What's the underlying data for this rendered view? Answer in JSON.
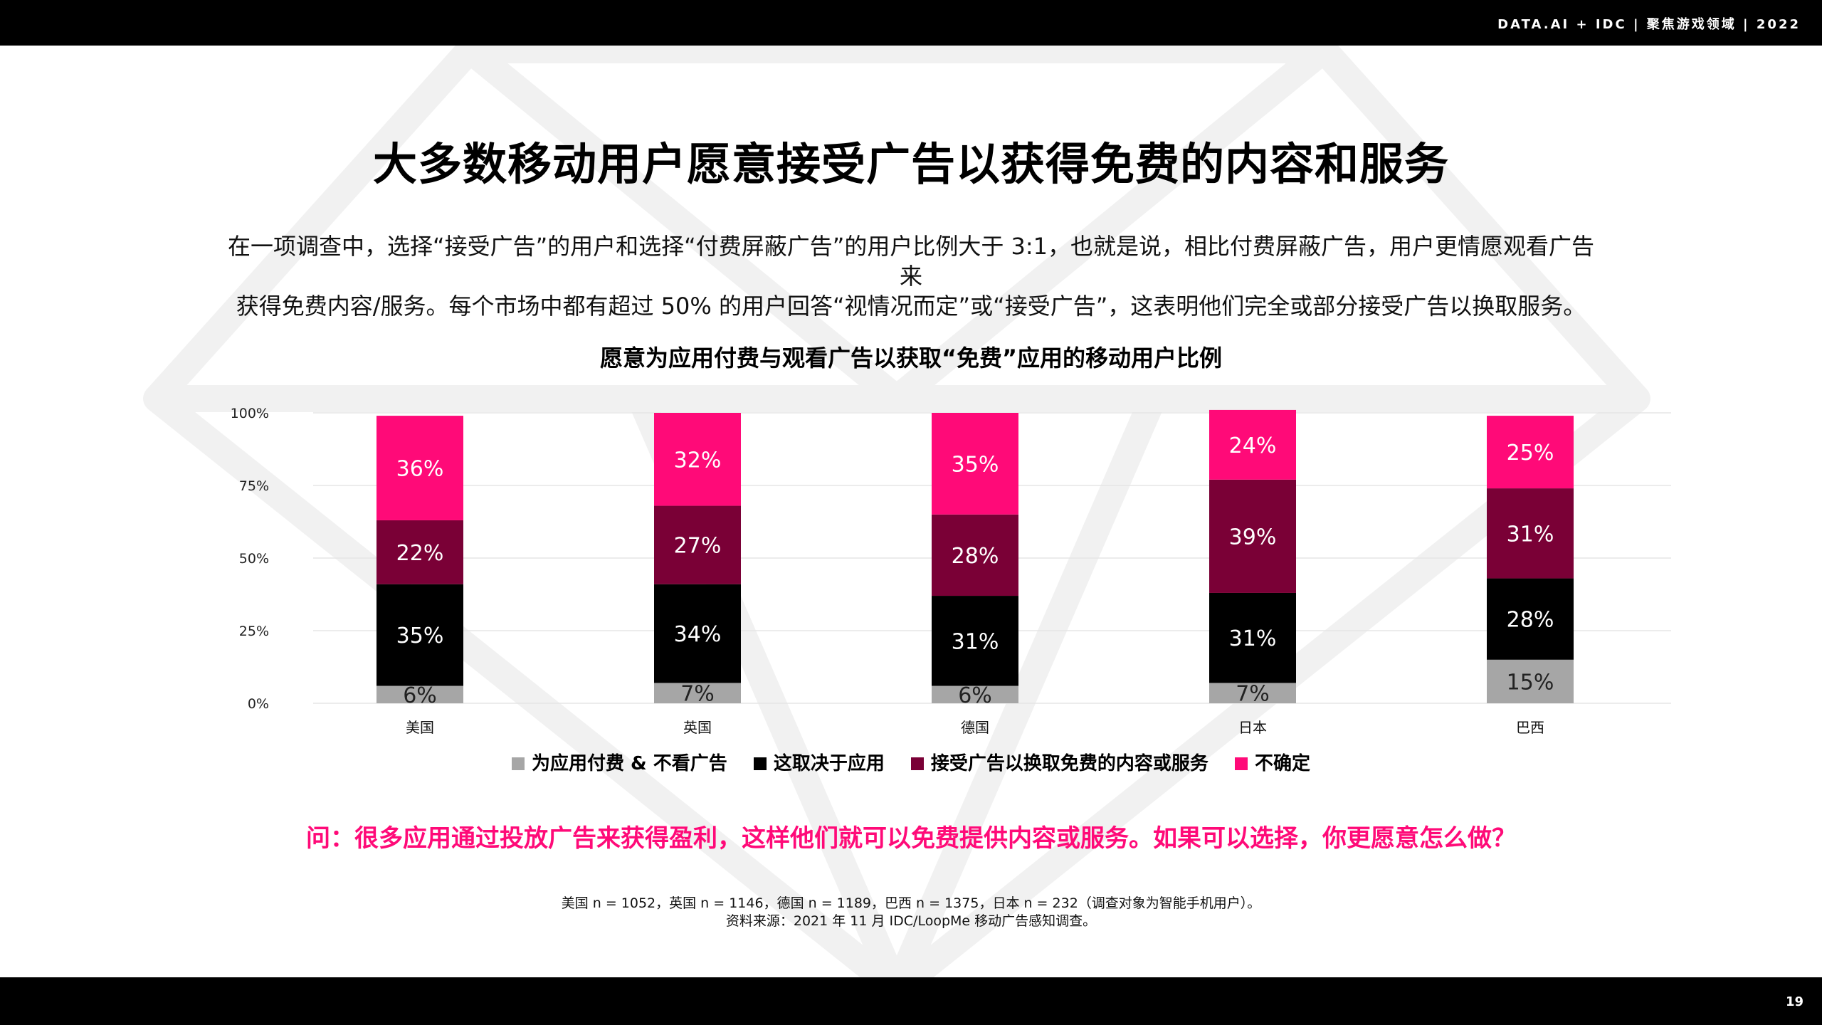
{
  "header": {
    "brand": "DATA.AI + IDC  |  聚焦游戏领域  | 2022"
  },
  "page_number": "19",
  "title": "大多数移动用户愿意接受广告以获得免费的内容和服务",
  "subtitle_line1": "在一项调查中，选择“接受广告”的用户和选择“付费屏蔽广告”的用户比例大于 3:1，也就是说，相比付费屏蔽广告，用户更情愿观看广告来",
  "subtitle_line2": "获得免费内容/服务。每个市场中都有超过 50% 的用户回答“视情况而定”或“接受广告”，这表明他们完全或部分接受广告以换取服务。",
  "chart_data": {
    "type": "bar",
    "stacked": true,
    "title": "愿意为应用付费与观看广告以获取“免费”应用的移动用户比例",
    "categories": [
      "美国",
      "英国",
      "德国",
      "日本",
      "巴西"
    ],
    "y_ticks": [
      "0%",
      "25%",
      "50%",
      "75%",
      "100%"
    ],
    "ylim": [
      0,
      100
    ],
    "grid": true,
    "legend_position": "bottom",
    "series": [
      {
        "name": "为应用付费 & 不看广告",
        "color": "#a6a6a6",
        "values": [
          6,
          7,
          6,
          7,
          15
        ]
      },
      {
        "name": "这取决于应用",
        "color": "#000000",
        "values": [
          35,
          34,
          31,
          31,
          28
        ]
      },
      {
        "name": "接受广告以换取免费的内容或服务",
        "color": "#7a0036",
        "values": [
          22,
          27,
          28,
          39,
          31
        ]
      },
      {
        "name": "不确定",
        "color": "#ff0a78",
        "values": [
          36,
          32,
          35,
          24,
          25
        ]
      }
    ]
  },
  "question": "问：很多应用通过投放广告来获得盈利，这样他们就可以免费提供内容或服务。如果可以选择，你更愿意怎么做？",
  "footnote_line1": "美国 n = 1052，英国 n = 1146，德国 n = 1189，巴西 n = 1375，日本 n = 232（调查对象为智能手机用户）。",
  "footnote_line2": "资料来源：2021 年 11 月 IDC/LoopMe 移动广告感知调查。"
}
